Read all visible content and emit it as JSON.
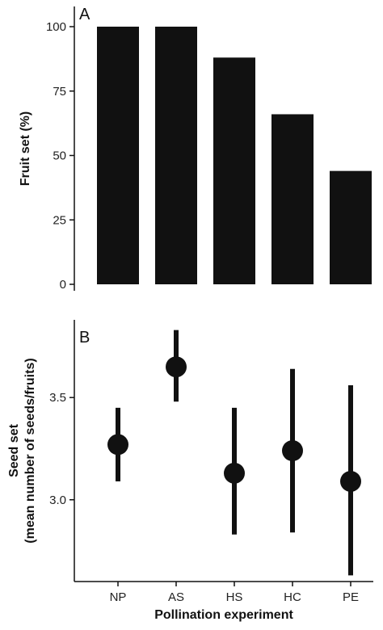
{
  "chart_data": [
    {
      "panel": "A",
      "type": "bar",
      "categories": [
        "NP",
        "AS",
        "HS",
        "HC",
        "PE"
      ],
      "values": [
        100,
        100,
        88,
        66,
        44
      ],
      "ylabel": "Fruit set (%)",
      "ylim": [
        0,
        100
      ],
      "yticks": [
        0,
        25,
        50,
        75,
        100
      ],
      "bar_color": "#111111",
      "grid": false
    },
    {
      "panel": "B",
      "type": "scatter",
      "categories": [
        "NP",
        "AS",
        "HS",
        "HC",
        "PE"
      ],
      "values": [
        3.27,
        3.65,
        3.13,
        3.24,
        3.09
      ],
      "error_low": [
        3.09,
        3.48,
        2.83,
        2.84,
        2.63
      ],
      "error_high": [
        3.45,
        3.83,
        3.45,
        3.64,
        3.56
      ],
      "ylabel_line1": "Seed set",
      "ylabel_line2": "(mean number of seeds/fruits)",
      "xlabel": "Pollination experiment",
      "ylim": [
        2.6,
        3.88
      ],
      "yticks": [
        3.0,
        3.5
      ],
      "ytick_labels": [
        "3.0",
        "3.5"
      ],
      "point_color": "#111111",
      "grid": false
    }
  ]
}
